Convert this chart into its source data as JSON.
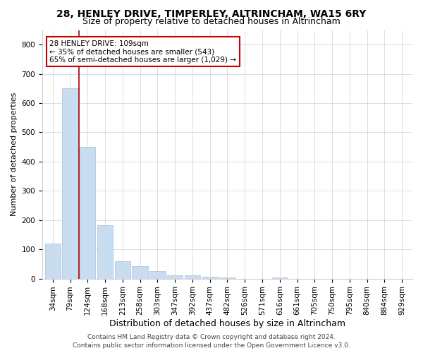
{
  "title1": "28, HENLEY DRIVE, TIMPERLEY, ALTRINCHAM, WA15 6RY",
  "title2": "Size of property relative to detached houses in Altrincham",
  "xlabel": "Distribution of detached houses by size in Altrincham",
  "ylabel": "Number of detached properties",
  "categories": [
    "34sqm",
    "79sqm",
    "124sqm",
    "168sqm",
    "213sqm",
    "258sqm",
    "303sqm",
    "347sqm",
    "392sqm",
    "437sqm",
    "482sqm",
    "526sqm",
    "571sqm",
    "616sqm",
    "661sqm",
    "705sqm",
    "750sqm",
    "795sqm",
    "840sqm",
    "884sqm",
    "929sqm"
  ],
  "values": [
    120,
    650,
    450,
    182,
    60,
    42,
    25,
    10,
    10,
    6,
    5,
    0,
    0,
    5,
    0,
    0,
    0,
    0,
    0,
    0,
    0
  ],
  "bar_color": "#c9ddf0",
  "bar_edge_color": "#aabfd8",
  "property_line_x": 1.5,
  "property_line_color": "#aa0000",
  "annotation_text_line1": "28 HENLEY DRIVE: 109sqm",
  "annotation_text_line2": "← 35% of detached houses are smaller (543)",
  "annotation_text_line3": "65% of semi-detached houses are larger (1,029) →",
  "annotation_box_color": "#ffffff",
  "annotation_box_edge_color": "#cc0000",
  "ylim": [
    0,
    850
  ],
  "yticks": [
    0,
    100,
    200,
    300,
    400,
    500,
    600,
    700,
    800
  ],
  "footer1": "Contains HM Land Registry data © Crown copyright and database right 2024.",
  "footer2": "Contains public sector information licensed under the Open Government Licence v3.0.",
  "background_color": "#ffffff",
  "grid_color": "#d0d0d0",
  "title1_fontsize": 10,
  "title2_fontsize": 9,
  "xlabel_fontsize": 9,
  "ylabel_fontsize": 8,
  "tick_fontsize": 7.5,
  "footer_fontsize": 6.5,
  "annotation_fontsize": 7.5
}
